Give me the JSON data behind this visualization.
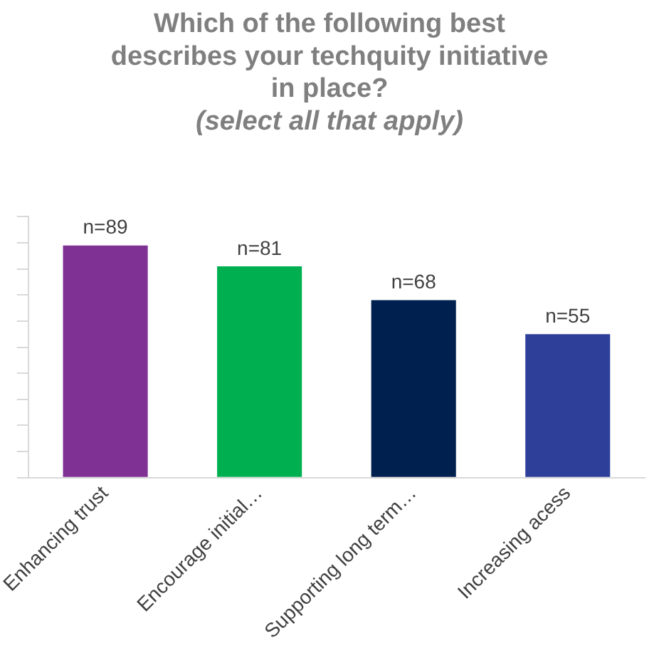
{
  "chart_data": {
    "type": "bar",
    "title": "Which of the following best describes your techquity initiative in place?",
    "subtitle": "(select all that apply)",
    "categories": [
      "Enhancing trust",
      "Encourage initial…",
      "Supporting long term…",
      "Increasing acess"
    ],
    "values": [
      89,
      81,
      68,
      55
    ],
    "value_labels": [
      "n=89",
      "n=81",
      "n=68",
      "n=55"
    ],
    "colors": [
      "#7f3194",
      "#00b050",
      "#002050",
      "#2e3f9a"
    ],
    "ylim": [
      0,
      100
    ],
    "yticks": [
      {
        "value": 0,
        "label": null
      },
      {
        "value": 10,
        "label": null
      },
      {
        "value": 20,
        "label": null
      },
      {
        "value": 30,
        "label": null
      },
      {
        "value": 40,
        "label": null
      },
      {
        "value": 50,
        "label": null
      },
      {
        "value": 60,
        "label": null
      },
      {
        "value": 70,
        "label": null
      },
      {
        "value": 80,
        "label": null
      },
      {
        "value": 90,
        "label": null
      },
      {
        "value": 100,
        "label": null
      }
    ],
    "tick_labels": "x",
    "grid": false,
    "legend": false
  }
}
